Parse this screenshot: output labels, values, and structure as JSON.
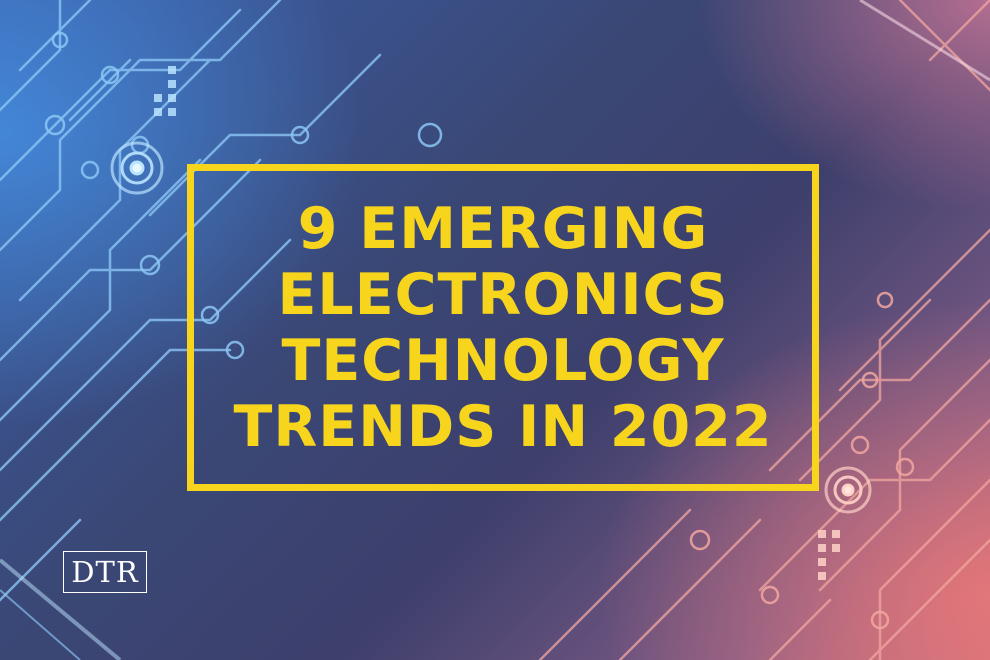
{
  "headline": {
    "line1": "9 EMERGING",
    "line2": "ELECTRONICS",
    "line3": "TECHNOLOGY",
    "line4": "TRENDS IN 2022"
  },
  "logo": {
    "text": "DTR"
  },
  "colors": {
    "accent_yellow": "#f7d51d",
    "blue_glow": "#4b9be6",
    "pink_glow": "#e57a80",
    "circuit_blue": "#8cc6f5",
    "circuit_pink": "#f2a7a0"
  },
  "icons": [
    "circuit-board-pattern",
    "circuit-target-icon"
  ]
}
